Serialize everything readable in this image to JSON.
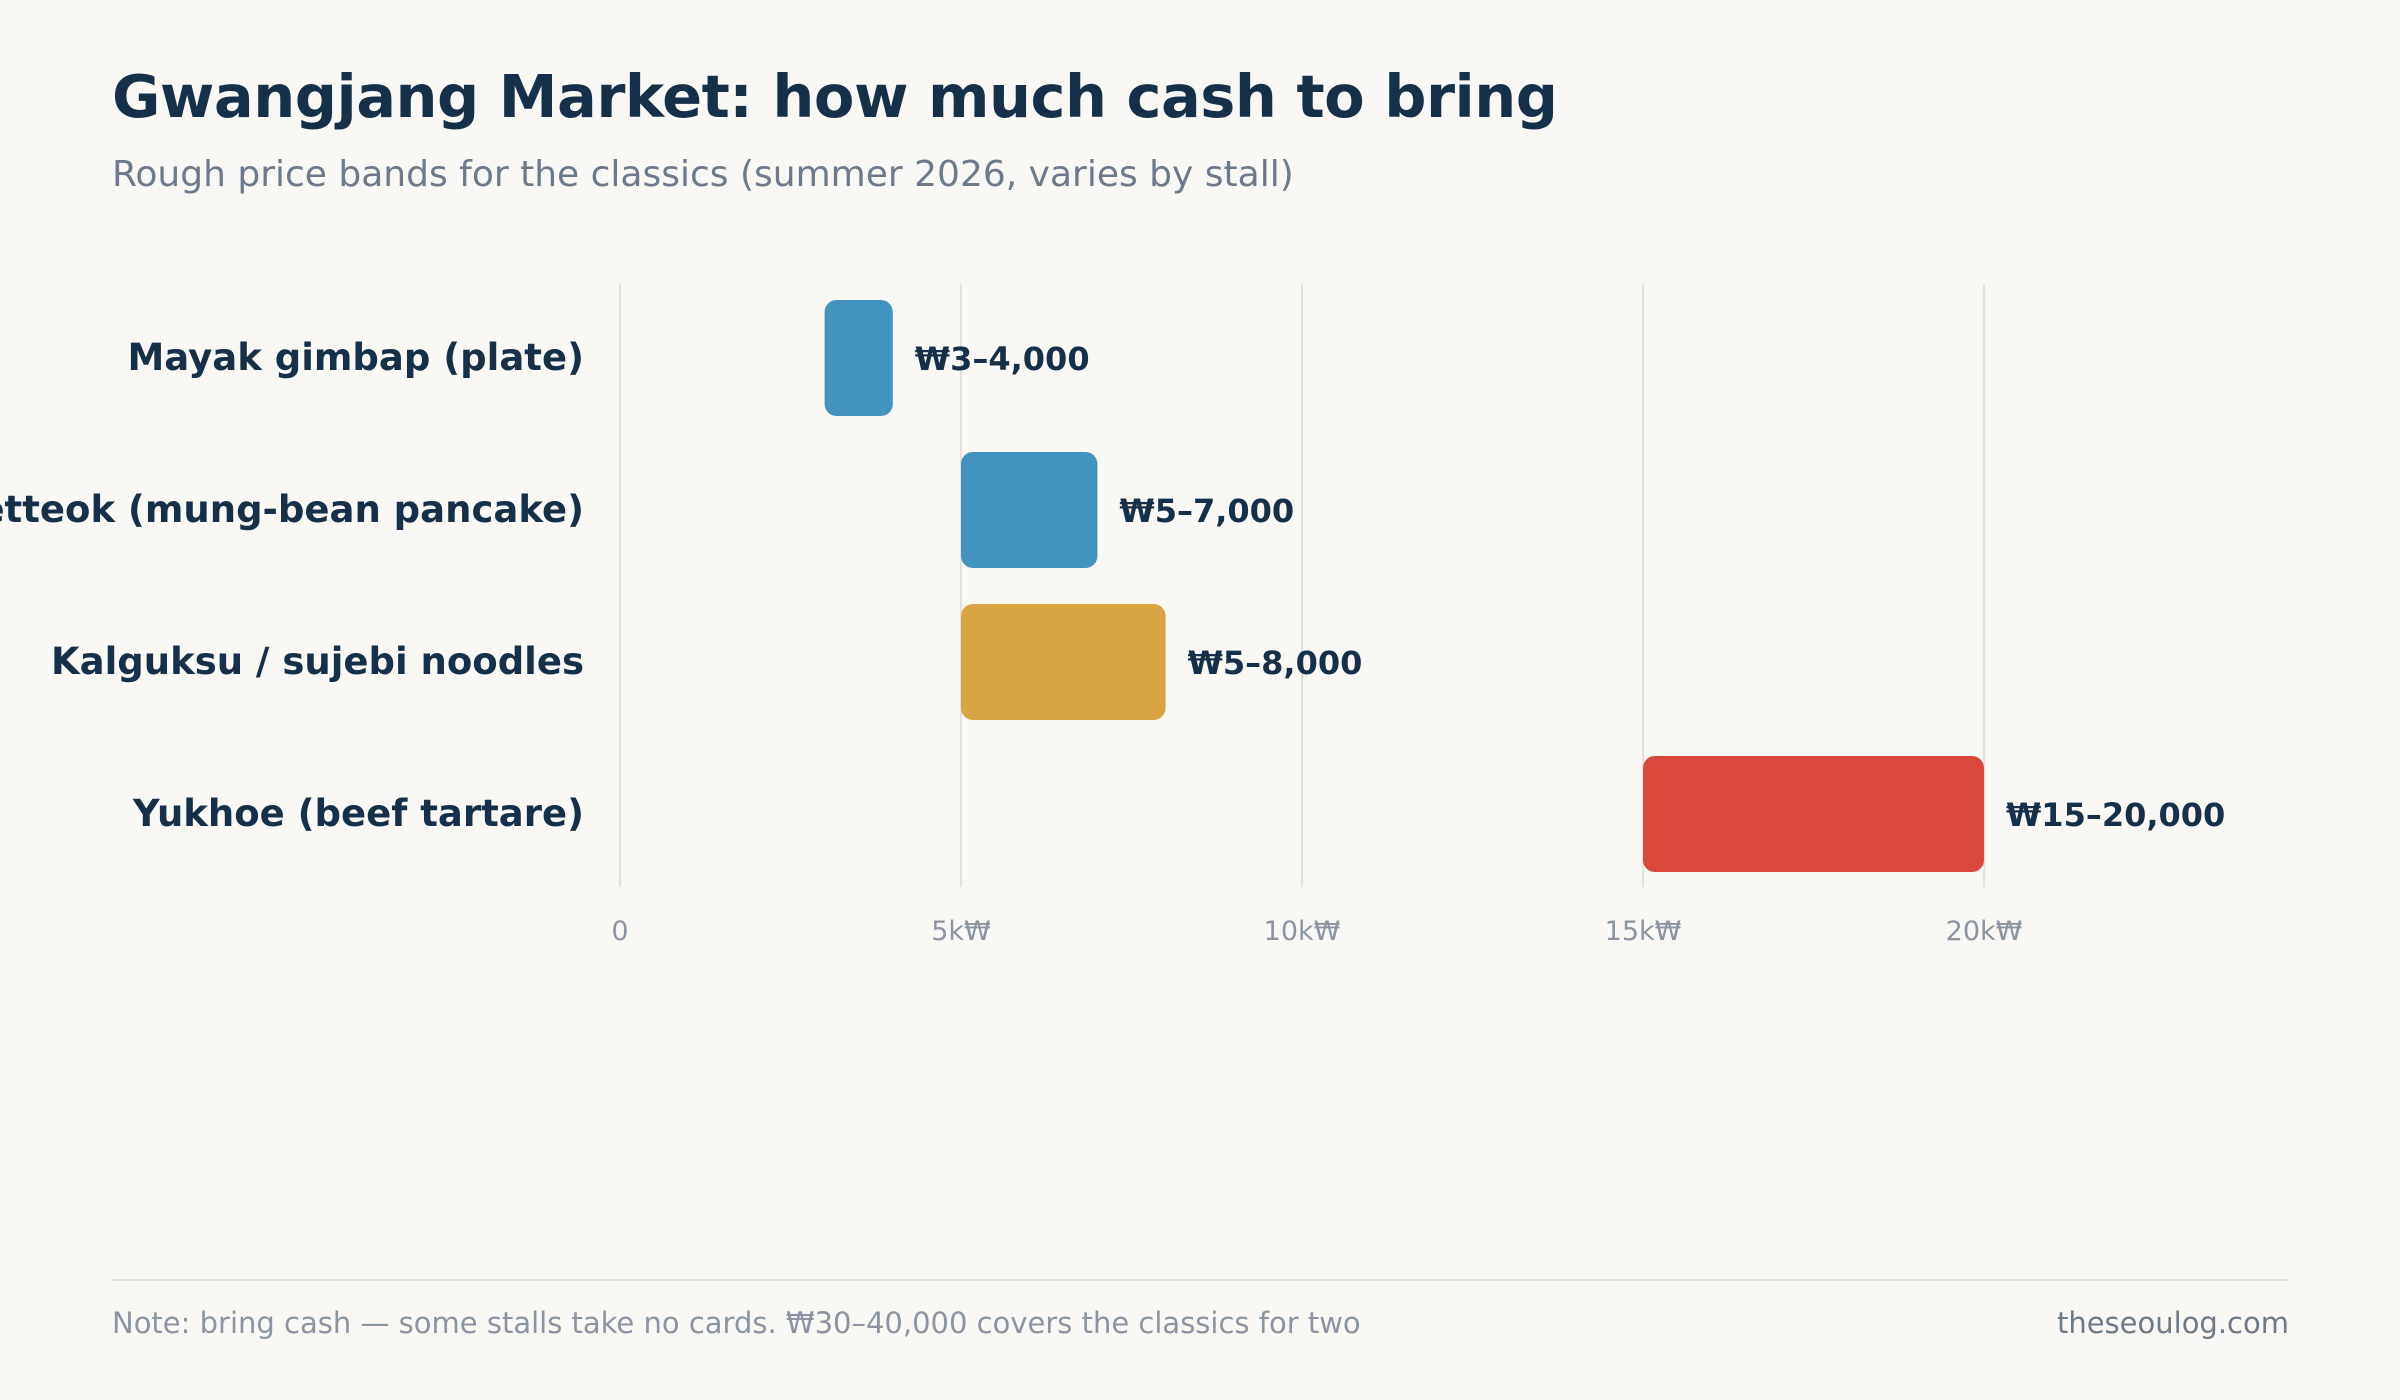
{
  "header": {
    "title": "Gwangjang Market: how much cash to bring",
    "subtitle": "Rough price bands for the classics (summer 2026, varies by stall)"
  },
  "chart_data": {
    "type": "bar",
    "orientation": "horizontal",
    "value_kind": "range",
    "categories": [
      "Mayak gimbap (plate)",
      "Bindaetteok (mung-bean pancake)",
      "Kalguksu / sujebi noodles",
      "Yukhoe (beef tartare)"
    ],
    "ranges": [
      [
        3000,
        4000
      ],
      [
        5000,
        7000
      ],
      [
        5000,
        8000
      ],
      [
        15000,
        20000
      ]
    ],
    "data_labels": [
      "₩3–4,000",
      "₩5–7,000",
      "₩5–8,000",
      "₩15–20,000"
    ],
    "colors": [
      "#4293be",
      "#4293be",
      "#d9a542",
      "#d9493b"
    ],
    "x_ticks": [
      0,
      5000,
      10000,
      15000,
      20000
    ],
    "x_tick_labels": [
      "0",
      "5k₩",
      "10k₩",
      "15k₩",
      "20k₩"
    ],
    "xlim": [
      0,
      20000
    ],
    "grid": true,
    "legend": "none",
    "xlabel": "",
    "ylabel": ""
  },
  "footer": {
    "note": "Note: bring cash — some stalls take no cards. ₩30–40,000 covers the classics for two",
    "source": "theseoulog.com"
  }
}
